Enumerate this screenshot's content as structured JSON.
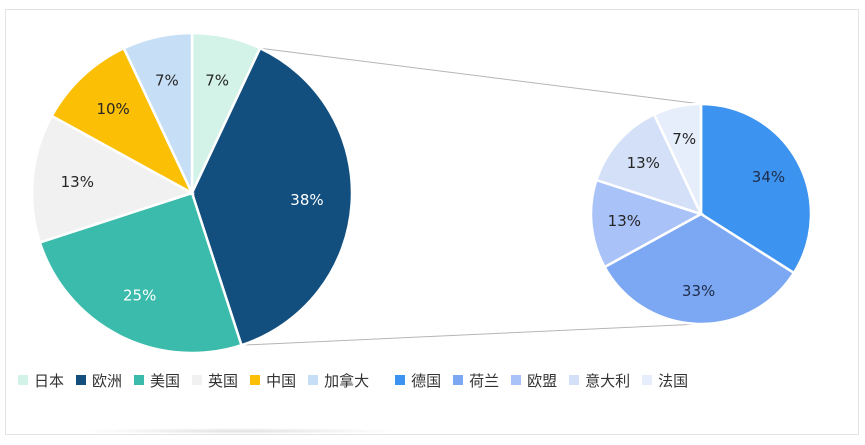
{
  "chart_data": {
    "type": "pie-of-pie",
    "main_pie": {
      "categories": [
        "日本",
        "欧洲",
        "美国",
        "英国",
        "中国",
        "加拿大"
      ],
      "values": [
        7,
        38,
        25,
        13,
        10,
        7
      ],
      "labels": [
        "7%",
        "38%",
        "25%",
        "13%",
        "10%",
        "7%"
      ],
      "colors": [
        "#d3f2e8",
        "#124f7e",
        "#3bbbab",
        "#f1f1f1",
        "#fbbf06",
        "#c6dff6"
      ]
    },
    "secondary_pie": {
      "parent_category": "欧洲",
      "categories": [
        "德国",
        "荷兰",
        "欧盟",
        "意大利",
        "法国"
      ],
      "values": [
        34,
        33,
        13,
        13,
        7
      ],
      "labels": [
        "34%",
        "33%",
        "13%",
        "13%",
        "7%"
      ],
      "colors": [
        "#3d94f0",
        "#7ba7f3",
        "#a9c2f8",
        "#d3e0f8",
        "#e6eefb"
      ]
    },
    "legend_position": "bottom"
  }
}
